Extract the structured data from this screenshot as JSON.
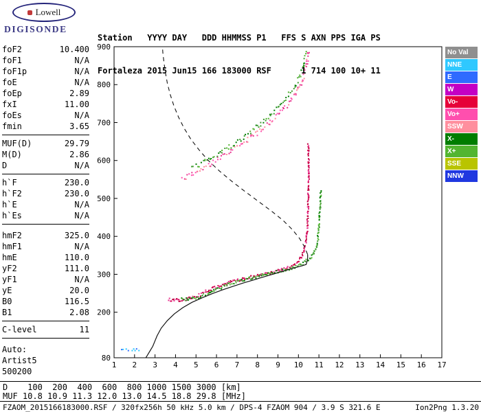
{
  "logo": {
    "brand": "Lowell",
    "product": "DIGISONDE"
  },
  "header": {
    "line1": "Station   YYYY DAY   DDD HHMMSS P1   FFS S AXN PPS IGA PS",
    "line2": "Fortaleza 2015 Jun15 166 183000 RSF      1 714 100 10+ 11"
  },
  "params": {
    "groups": [
      {
        "rows": [
          [
            "foF2",
            "10.400"
          ],
          [
            "foF1",
            "N/A"
          ],
          [
            "foF1p",
            "N/A"
          ],
          [
            "foE",
            "N/A"
          ],
          [
            "foEp",
            "2.89"
          ],
          [
            "fxI",
            "11.00"
          ],
          [
            "foEs",
            "N/A"
          ],
          [
            "fmin",
            "3.65"
          ]
        ]
      },
      {
        "rows": [
          [
            "MUF(D)",
            "29.79"
          ],
          [
            "M(D)",
            "2.86"
          ],
          [
            "D",
            "N/A"
          ]
        ]
      },
      {
        "rows": [
          [
            "h`F",
            "230.0"
          ],
          [
            "h`F2",
            "230.0"
          ],
          [
            "h`E",
            "N/A"
          ],
          [
            "h`Es",
            "N/A"
          ]
        ]
      },
      {
        "rows": [
          [
            "hmF2",
            "325.0"
          ],
          [
            "hmF1",
            "N/A"
          ],
          [
            "hmE",
            "110.0"
          ],
          [
            "yF2",
            "111.0"
          ],
          [
            "yF1",
            "N/A"
          ],
          [
            "yE",
            "20.0"
          ],
          [
            "B0",
            "116.5"
          ],
          [
            "B1",
            "2.08"
          ]
        ]
      },
      {
        "rows": [
          [
            "C-level",
            "11"
          ]
        ]
      }
    ],
    "footer_lines": [
      "Auto:",
      "Artist5",
      "500200"
    ]
  },
  "legend": {
    "items": [
      {
        "label": "No Val",
        "color": "#8f8f8f"
      },
      {
        "label": "NNE",
        "color": "#2fc8ff"
      },
      {
        "label": "E",
        "color": "#2f6bff"
      },
      {
        "label": "W",
        "color": "#c400c4"
      },
      {
        "label": "Vo-",
        "color": "#e60039"
      },
      {
        "label": "Vo+",
        "color": "#ff4fae"
      },
      {
        "label": "SSW",
        "color": "#ff8f9e"
      },
      {
        "label": "X-",
        "color": "#007d00"
      },
      {
        "label": "X+",
        "color": "#53b531"
      },
      {
        "label": "SSE",
        "color": "#b9c400"
      },
      {
        "label": "NNW",
        "color": "#2038e0"
      }
    ]
  },
  "footer": {
    "d_line": "D    100  200  400  600  800 1000 1500 3000 [km]",
    "muf_line": "MUF 10.8 10.9 11.3 12.0 13.0 14.5 18.8 29.8 [MHz]",
    "file_info": "FZAOM_2015166183000.RSF / 320fx256h 50 kHz 5.0 km / DPS-4 FZAOM 904 / 3.9 S 321.6 E",
    "version": "Ion2Png 1.3.20"
  },
  "chart_data": {
    "type": "scatter",
    "title": "",
    "xlabel": "",
    "ylabel": "",
    "xlim": [
      1,
      17
    ],
    "ylim": [
      80,
      900
    ],
    "x_ticks": [
      1,
      2,
      3,
      4,
      5,
      6,
      7,
      8,
      9,
      10,
      11,
      12,
      13,
      14,
      15,
      16,
      17
    ],
    "y_ticks": [
      80,
      200,
      300,
      400,
      500,
      600,
      700,
      800,
      900
    ],
    "grid": false,
    "legend_position": "right",
    "series": [
      {
        "name": "o-mode-f-trace",
        "style": "dots",
        "colors": [
          "#d6004f",
          "#e8338f",
          "#c00040"
        ],
        "size": 2,
        "step": 1.6,
        "jitter": [
          0.9,
          2.2
        ],
        "points": [
          [
            3.65,
            234
          ],
          [
            3.9,
            232
          ],
          [
            4.2,
            232
          ],
          [
            4.5,
            234
          ],
          [
            4.8,
            238
          ],
          [
            5.1,
            244
          ],
          [
            5.4,
            252
          ],
          [
            5.7,
            260
          ],
          [
            6.0,
            267
          ],
          [
            6.3,
            273
          ],
          [
            6.6,
            278
          ],
          [
            7.0,
            284
          ],
          [
            7.4,
            289
          ],
          [
            7.8,
            294
          ],
          [
            8.2,
            299
          ],
          [
            8.6,
            304
          ],
          [
            9.0,
            309
          ],
          [
            9.4,
            316
          ],
          [
            9.7,
            323
          ],
          [
            9.9,
            330
          ],
          [
            10.1,
            341
          ],
          [
            10.25,
            357
          ],
          [
            10.35,
            378
          ],
          [
            10.42,
            408
          ],
          [
            10.46,
            452
          ],
          [
            10.48,
            505
          ],
          [
            10.5,
            560
          ],
          [
            10.5,
            605
          ],
          [
            10.48,
            645
          ]
        ]
      },
      {
        "name": "x-mode-f-trace",
        "style": "dots",
        "colors": [
          "#007d00",
          "#3f9b2f",
          "#58b838"
        ],
        "size": 2,
        "step": 1.8,
        "jitter": [
          0.9,
          2.2
        ],
        "points": [
          [
            4.3,
            234
          ],
          [
            4.65,
            234
          ],
          [
            4.95,
            237
          ],
          [
            5.25,
            242
          ],
          [
            5.55,
            249
          ],
          [
            5.85,
            257
          ],
          [
            6.15,
            264
          ],
          [
            6.45,
            271
          ],
          [
            6.75,
            277
          ],
          [
            7.15,
            283
          ],
          [
            7.55,
            289
          ],
          [
            7.95,
            294
          ],
          [
            8.35,
            299
          ],
          [
            8.75,
            304
          ],
          [
            9.15,
            309
          ],
          [
            9.55,
            315
          ],
          [
            9.95,
            322
          ],
          [
            10.25,
            330
          ],
          [
            10.5,
            339
          ],
          [
            10.7,
            351
          ],
          [
            10.85,
            368
          ],
          [
            10.95,
            395
          ],
          [
            11.0,
            430
          ],
          [
            11.05,
            470
          ],
          [
            11.08,
            505
          ],
          [
            11.1,
            520
          ]
        ]
      },
      {
        "name": "second-hop-pink",
        "style": "dots",
        "colors": [
          "#ff4fae",
          "#ff8f9e",
          "#e8338f"
        ],
        "size": 2,
        "step": 2.6,
        "jitter": [
          1.5,
          3.5
        ],
        "points": [
          [
            4.35,
            552
          ],
          [
            4.6,
            558
          ],
          [
            4.9,
            566
          ],
          [
            5.2,
            575
          ],
          [
            5.5,
            584
          ],
          [
            5.8,
            593
          ],
          [
            6.1,
            603
          ],
          [
            6.5,
            616
          ],
          [
            6.9,
            630
          ],
          [
            7.3,
            645
          ],
          [
            7.7,
            661
          ],
          [
            8.1,
            678
          ],
          [
            8.5,
            696
          ],
          [
            8.9,
            716
          ],
          [
            9.3,
            738
          ],
          [
            9.6,
            757
          ],
          [
            9.9,
            779
          ],
          [
            10.1,
            800
          ],
          [
            10.25,
            822
          ],
          [
            10.35,
            845
          ],
          [
            10.45,
            872
          ],
          [
            10.5,
            895
          ]
        ]
      },
      {
        "name": "second-hop-green",
        "style": "dots",
        "colors": [
          "#007d00",
          "#53b531",
          "#3f9b2f"
        ],
        "size": 2,
        "step": 2.8,
        "jitter": [
          1.5,
          3.5
        ],
        "points": [
          [
            4.8,
            580
          ],
          [
            5.1,
            587
          ],
          [
            5.4,
            596
          ],
          [
            5.7,
            605
          ],
          [
            6.0,
            615
          ],
          [
            6.4,
            627
          ],
          [
            6.8,
            642
          ],
          [
            7.2,
            657
          ],
          [
            7.6,
            673
          ],
          [
            8.0,
            690
          ],
          [
            8.4,
            709
          ],
          [
            8.8,
            729
          ],
          [
            9.2,
            751
          ],
          [
            9.5,
            770
          ],
          [
            9.8,
            792
          ],
          [
            10.0,
            812
          ],
          [
            10.2,
            837
          ],
          [
            10.3,
            860
          ],
          [
            10.4,
            887
          ]
        ]
      },
      {
        "name": "low-echoes",
        "style": "dots",
        "colors": [
          "#2fc8ff",
          "#2f6bff"
        ],
        "size": 2,
        "step": 3,
        "jitter": [
          1.2,
          1.5
        ],
        "points": [
          [
            1.35,
            100
          ],
          [
            1.6,
            101
          ],
          [
            1.85,
            100
          ],
          [
            2.1,
            102
          ],
          [
            2.25,
            100
          ]
        ]
      },
      {
        "name": "true-height-profile",
        "style": "line",
        "color": "#111111",
        "width": 1.2,
        "points": [
          [
            2.55,
            80
          ],
          [
            2.62,
            86
          ],
          [
            2.72,
            95
          ],
          [
            2.82,
            104
          ],
          [
            2.89,
            110
          ],
          [
            2.98,
            122
          ],
          [
            3.1,
            138
          ],
          [
            3.3,
            158
          ],
          [
            3.6,
            178
          ],
          [
            3.95,
            196
          ],
          [
            4.35,
            212
          ],
          [
            4.8,
            226
          ],
          [
            5.3,
            238
          ],
          [
            5.8,
            249
          ],
          [
            6.3,
            259
          ],
          [
            6.8,
            268
          ],
          [
            7.3,
            277
          ],
          [
            7.8,
            285
          ],
          [
            8.3,
            293
          ],
          [
            8.8,
            301
          ],
          [
            9.3,
            309
          ],
          [
            9.8,
            317
          ],
          [
            10.15,
            322
          ],
          [
            10.38,
            326
          ],
          [
            10.45,
            340
          ],
          [
            10.45,
            352
          ]
        ]
      },
      {
        "name": "topside-model",
        "style": "dashed",
        "color": "#111111",
        "width": 1.1,
        "dash": "6 5",
        "points": [
          [
            10.45,
            352
          ],
          [
            10.3,
            372
          ],
          [
            10.05,
            395
          ],
          [
            9.7,
            418
          ],
          [
            9.25,
            442
          ],
          [
            8.7,
            466
          ],
          [
            8.05,
            492
          ],
          [
            7.4,
            518
          ],
          [
            6.75,
            545
          ],
          [
            6.15,
            572
          ],
          [
            5.6,
            600
          ],
          [
            5.15,
            628
          ],
          [
            4.75,
            656
          ],
          [
            4.42,
            685
          ],
          [
            4.15,
            714
          ],
          [
            3.92,
            744
          ],
          [
            3.74,
            774
          ],
          [
            3.6,
            804
          ],
          [
            3.5,
            834
          ],
          [
            3.43,
            862
          ],
          [
            3.38,
            884
          ],
          [
            3.36,
            900
          ]
        ]
      }
    ]
  }
}
